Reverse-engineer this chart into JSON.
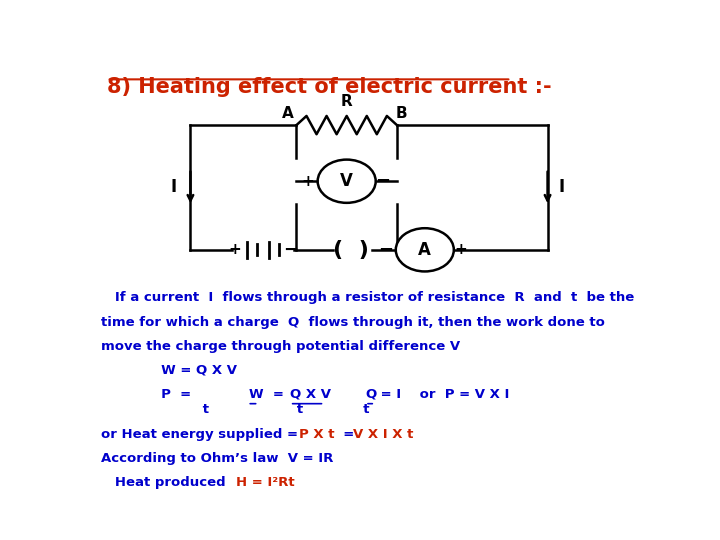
{
  "title": "8) Heating effect of electric current :-",
  "title_color": "#CC2200",
  "bg_color": "#FFFFFF",
  "body_text_color": "#0000CC",
  "highlight_color": "#CC2200",
  "body_lines": [
    "   If a current  I  flows through a resistor of resistance  R  and  t  be the",
    "time for which a charge  Q  flows through it, then the work done to",
    "move the charge through potential difference V"
  ]
}
